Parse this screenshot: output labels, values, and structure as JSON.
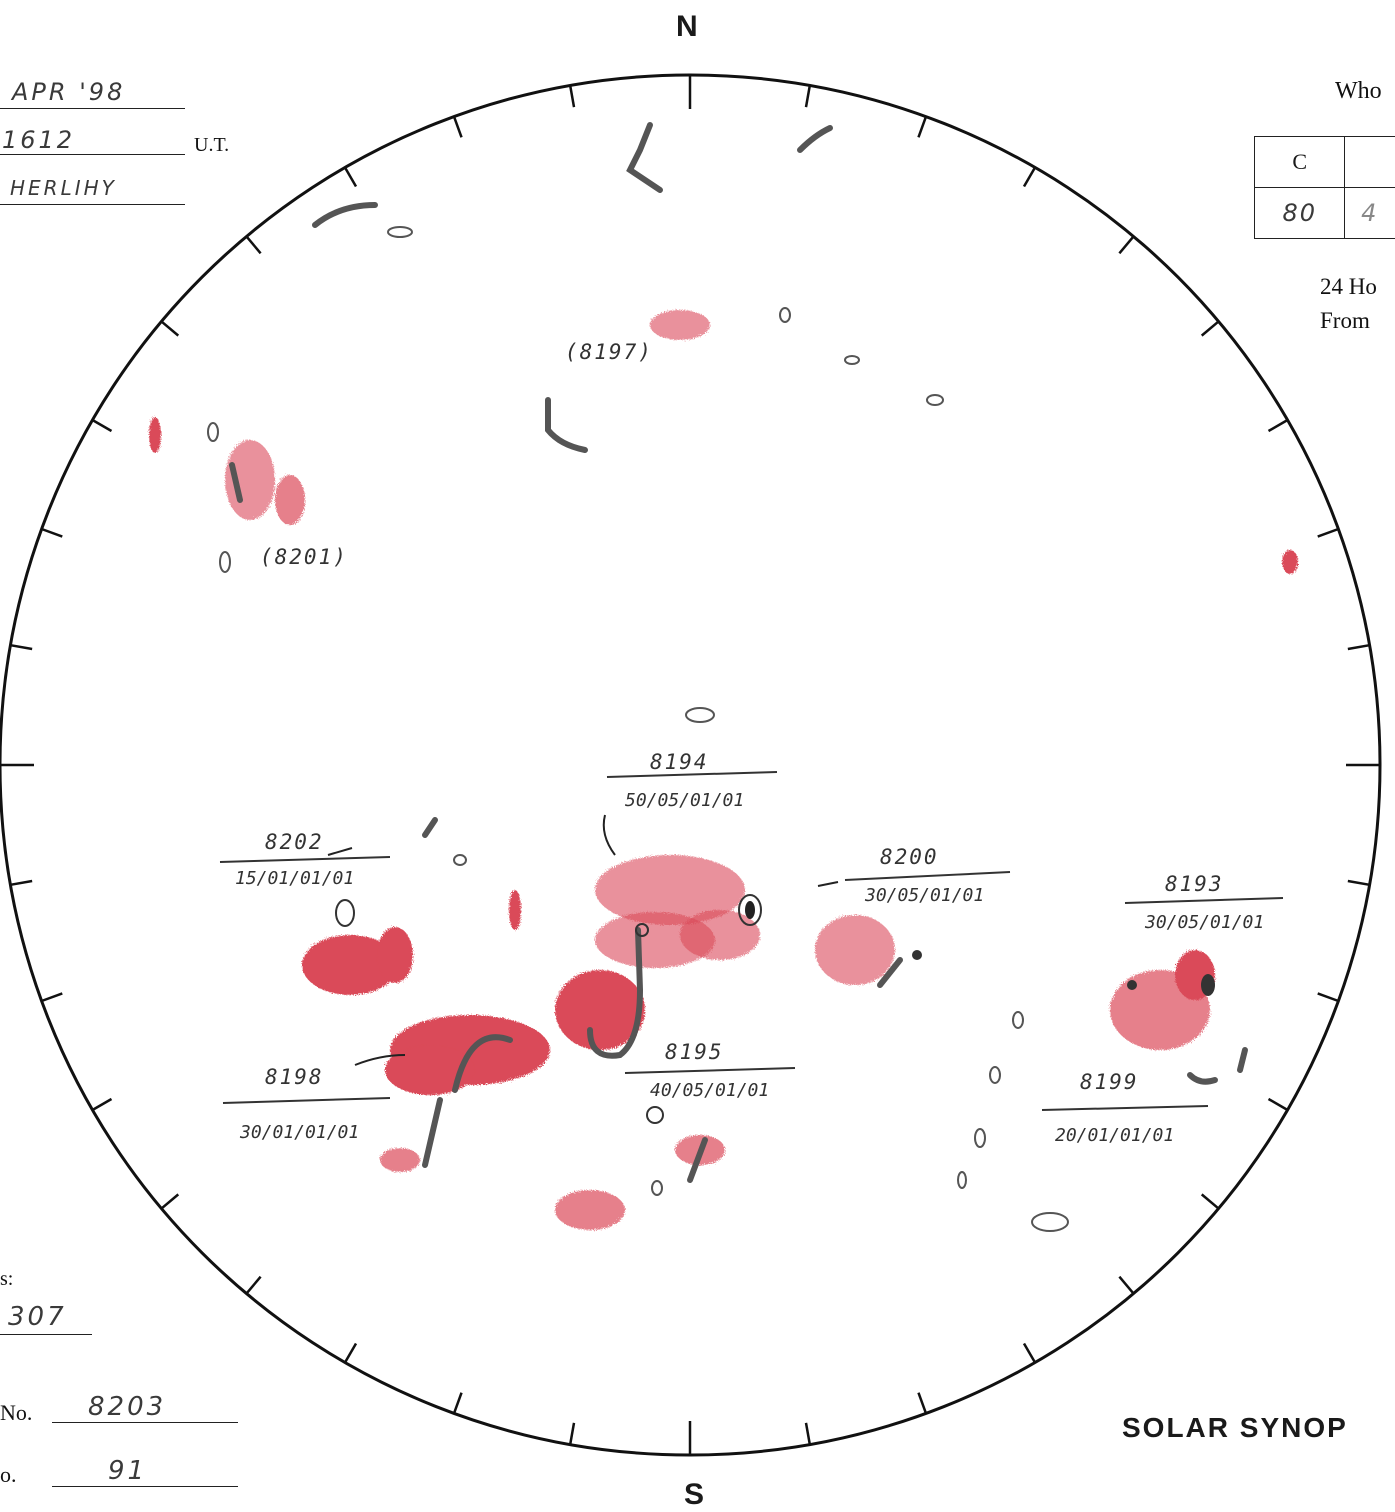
{
  "header": {
    "date": "APR '98",
    "time": "1612",
    "time_unit": "U.T.",
    "observer": "HERLIHY"
  },
  "compass": {
    "north": "N",
    "south": "S"
  },
  "table": {
    "title": "Who",
    "headers": [
      "C",
      ""
    ],
    "values": [
      "80",
      "4"
    ]
  },
  "note": {
    "line1": "24 Ho",
    "line2": "From"
  },
  "bottom_left": {
    "label_a": "s:",
    "value_a": "307",
    "label_b": "No.",
    "value_b": "8203",
    "label_c": "o.",
    "value_c": "91"
  },
  "footer_title": "SOLAR SYNOP",
  "regions": [
    {
      "id": "8197",
      "label": "(8197)",
      "code": ""
    },
    {
      "id": "8201",
      "label": "(8201)",
      "code": ""
    },
    {
      "id": "8194",
      "label": "8194",
      "code": "50/05/01/01"
    },
    {
      "id": "8202",
      "label": "8202",
      "code": "15/01/01/01"
    },
    {
      "id": "8200",
      "label": "8200",
      "code": "30/05/01/01"
    },
    {
      "id": "8193",
      "label": "8193",
      "code": "30/05/01/01"
    },
    {
      "id": "8195",
      "label": "8195",
      "code": "40/05/01/01"
    },
    {
      "id": "8198",
      "label": "8198",
      "code": "30/01/01/01"
    },
    {
      "id": "8199",
      "label": "8199",
      "code": "20/01/01/01"
    }
  ],
  "colors": {
    "ink": "#222222",
    "red_pencil": "#d42a3a",
    "graphite": "#555555"
  }
}
